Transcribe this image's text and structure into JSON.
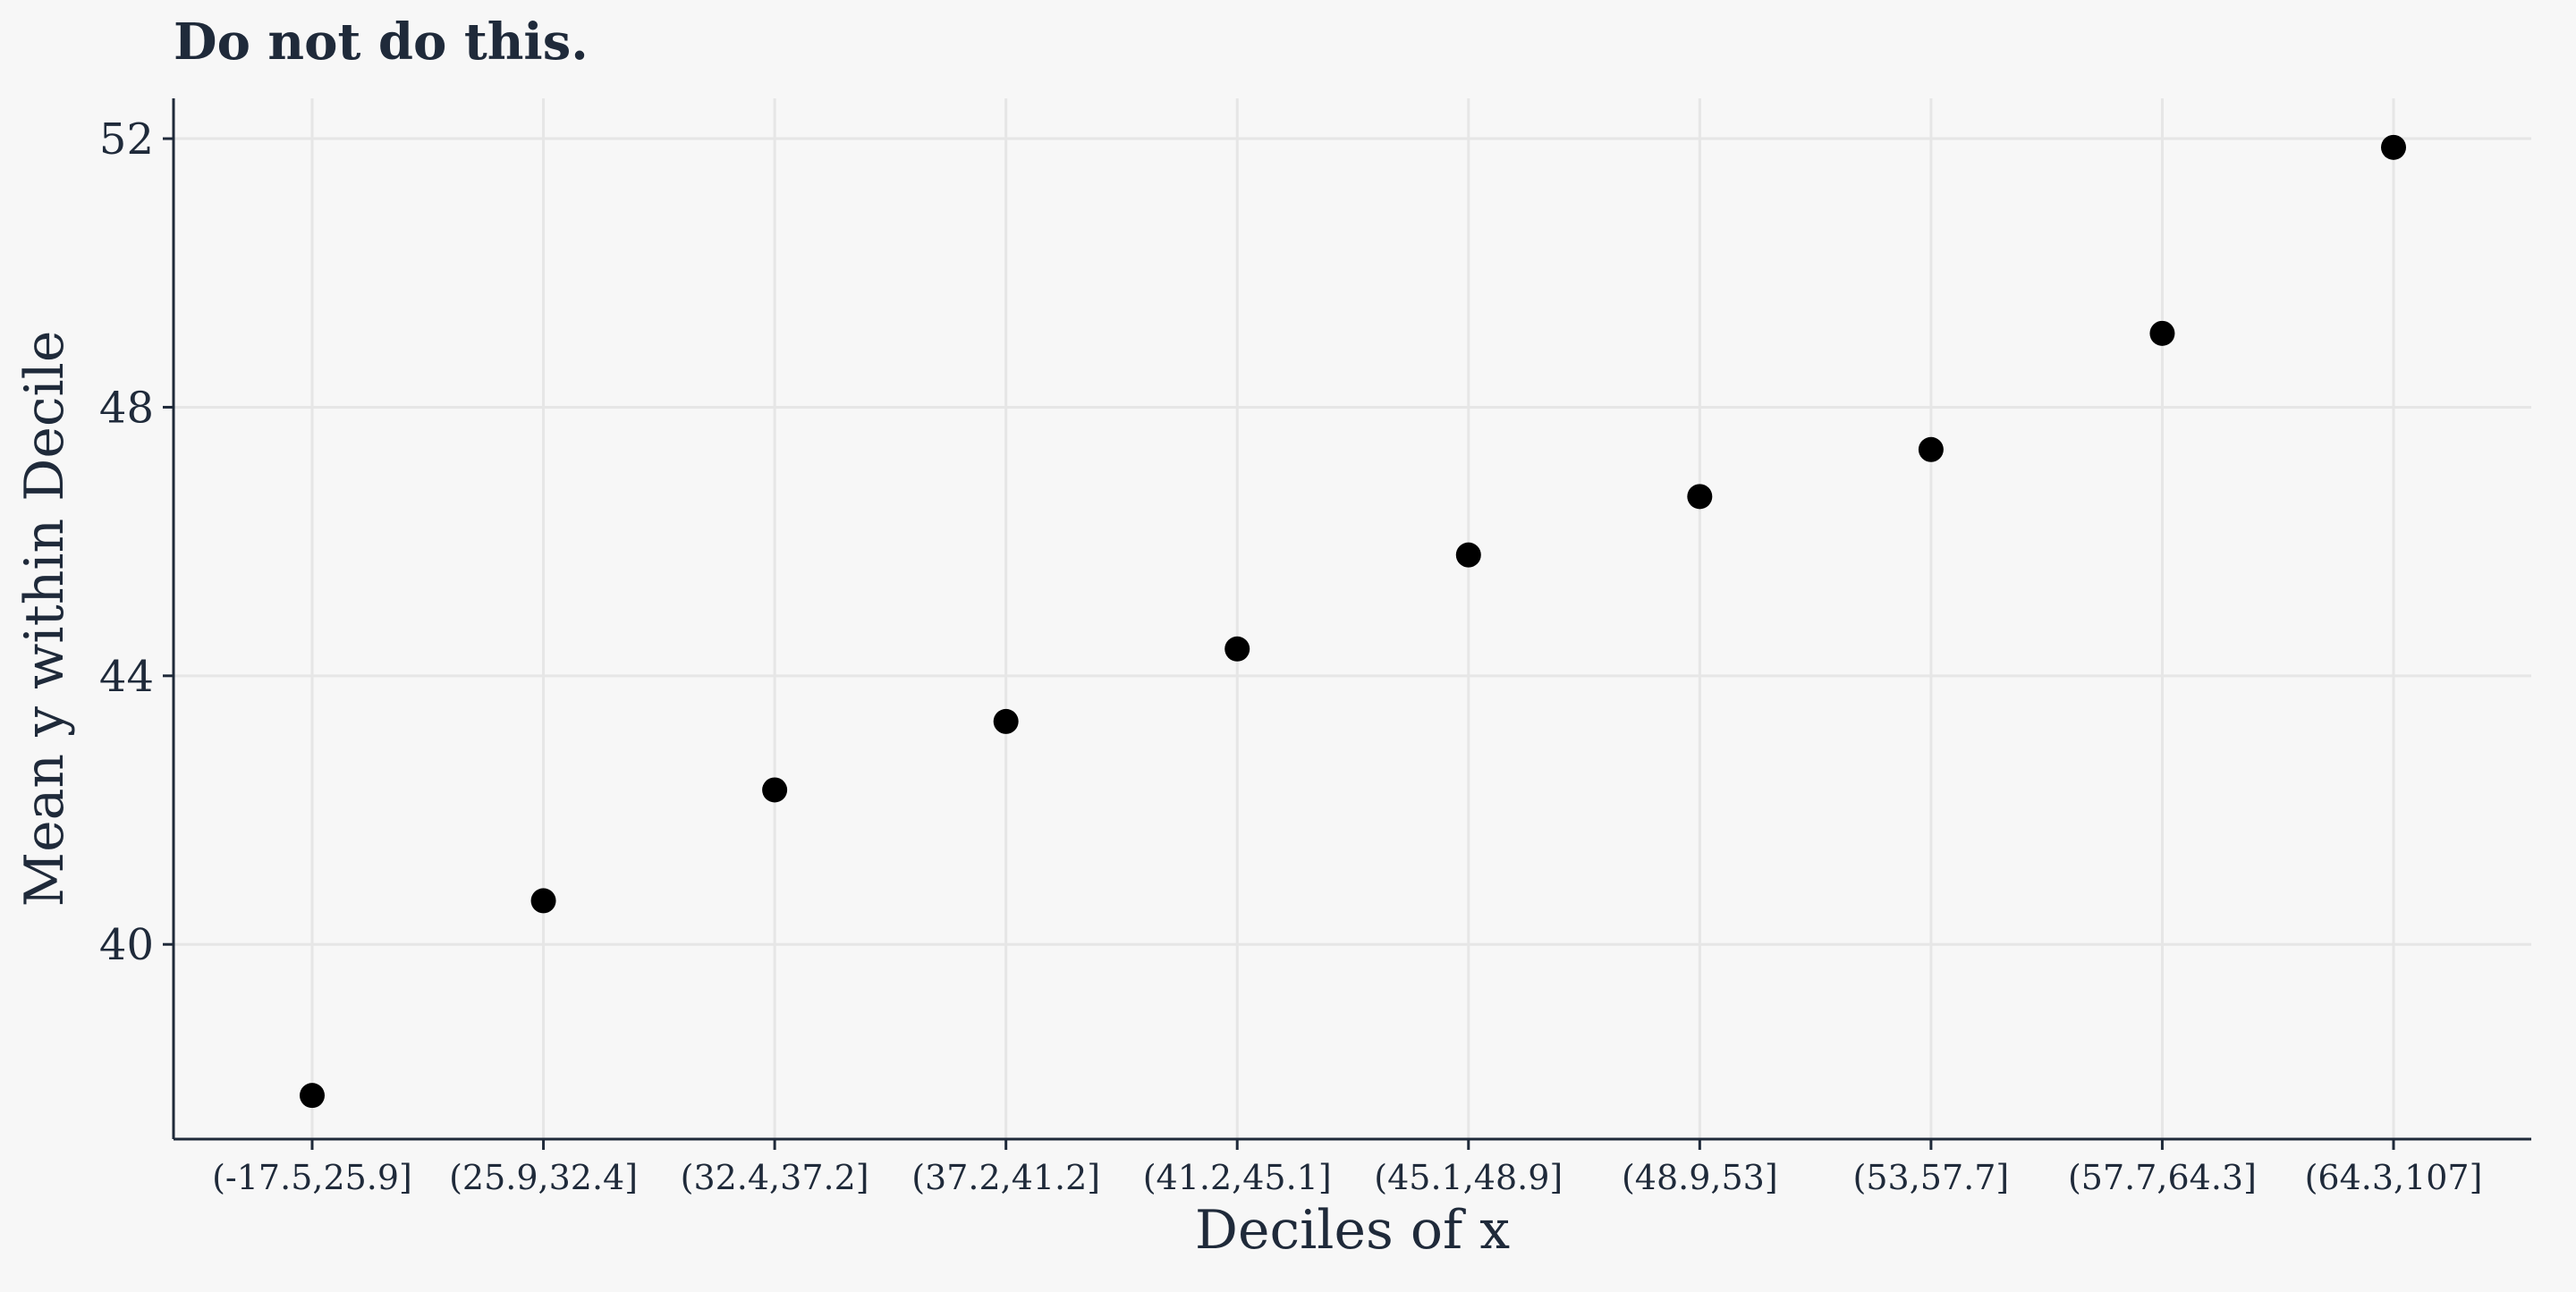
{
  "chart_data": {
    "type": "scatter",
    "title": "Do not do this.",
    "xlabel": "Deciles of x",
    "ylabel": "Mean y within Decile",
    "categories": [
      "(-17.5,25.9]",
      "(25.9,32.4]",
      "(32.4,37.2]",
      "(37.2,41.2]",
      "(41.2,45.1]",
      "(45.1,48.9]",
      "(48.9,53]",
      "(53,57.7]",
      "(57.7,64.3]",
      "(64.3,107]"
    ],
    "values": [
      37.75,
      40.65,
      42.3,
      43.32,
      44.4,
      45.8,
      46.67,
      47.37,
      49.1,
      51.87
    ],
    "ylim": [
      37.1,
      52.6
    ],
    "yticks": [
      40,
      44,
      48,
      52
    ],
    "grid": true,
    "legend": "none",
    "point_color": "#000000"
  }
}
